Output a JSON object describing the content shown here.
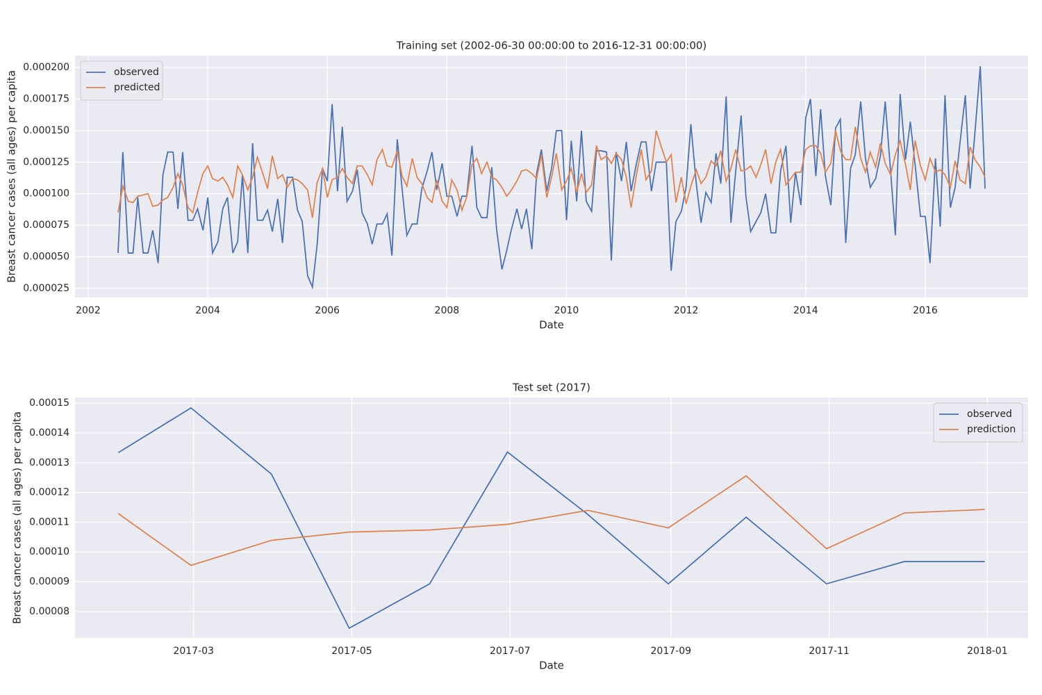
{
  "chart_data": [
    {
      "type": "line",
      "title": "Training set (2002-06-30 00:00:00 to 2016-12-31 00:00:00)",
      "x_label": "Date",
      "y_label": "Breast cancer cases (all ages) per capita",
      "legend": "upper left",
      "grid": true,
      "xlim": [
        2001.78,
        2017.72
      ],
      "xticks": [
        2002,
        2004,
        2006,
        2008,
        2010,
        2012,
        2014,
        2016
      ],
      "ylim": [
        1.78e-05,
        0.0002094
      ],
      "yticks": [
        {
          "value": 2.5e-05,
          "label": "0.000025"
        },
        {
          "value": 5e-05,
          "label": "0.000050"
        },
        {
          "value": 7.5e-05,
          "label": "0.000075"
        },
        {
          "value": 0.0001,
          "label": "0.000100"
        },
        {
          "value": 0.000125,
          "label": "0.000125"
        },
        {
          "value": 0.00015,
          "label": "0.000150"
        },
        {
          "value": 0.000175,
          "label": "0.000175"
        },
        {
          "value": 0.0002,
          "label": "0.000200"
        }
      ],
      "x": [
        2002.5,
        2002.58,
        2002.67,
        2002.75,
        2002.83,
        2002.92,
        2003.0,
        2003.08,
        2003.17,
        2003.25,
        2003.33,
        2003.42,
        2003.5,
        2003.58,
        2003.67,
        2003.75,
        2003.83,
        2003.92,
        2004.0,
        2004.08,
        2004.17,
        2004.25,
        2004.33,
        2004.42,
        2004.5,
        2004.58,
        2004.67,
        2004.75,
        2004.83,
        2004.92,
        2005.0,
        2005.08,
        2005.17,
        2005.25,
        2005.33,
        2005.42,
        2005.5,
        2005.58,
        2005.67,
        2005.75,
        2005.83,
        2005.92,
        2006.0,
        2006.08,
        2006.17,
        2006.25,
        2006.33,
        2006.42,
        2006.5,
        2006.58,
        2006.67,
        2006.75,
        2006.83,
        2006.92,
        2007.0,
        2007.08,
        2007.17,
        2007.25,
        2007.33,
        2007.42,
        2007.5,
        2007.58,
        2007.67,
        2007.75,
        2007.83,
        2007.92,
        2008.0,
        2008.08,
        2008.17,
        2008.25,
        2008.33,
        2008.42,
        2008.5,
        2008.58,
        2008.67,
        2008.75,
        2008.83,
        2008.92,
        2009.0,
        2009.08,
        2009.17,
        2009.25,
        2009.33,
        2009.42,
        2009.5,
        2009.58,
        2009.67,
        2009.75,
        2009.83,
        2009.92,
        2010.0,
        2010.08,
        2010.17,
        2010.25,
        2010.33,
        2010.42,
        2010.5,
        2010.58,
        2010.67,
        2010.75,
        2010.83,
        2010.92,
        2011.0,
        2011.08,
        2011.17,
        2011.25,
        2011.33,
        2011.42,
        2011.5,
        2011.58,
        2011.67,
        2011.75,
        2011.83,
        2011.92,
        2012.0,
        2012.08,
        2012.17,
        2012.25,
        2012.33,
        2012.42,
        2012.5,
        2012.58,
        2012.67,
        2012.75,
        2012.83,
        2012.92,
        2013.0,
        2013.08,
        2013.17,
        2013.25,
        2013.33,
        2013.42,
        2013.5,
        2013.58,
        2013.67,
        2013.75,
        2013.83,
        2013.92,
        2014.0,
        2014.08,
        2014.17,
        2014.25,
        2014.33,
        2014.42,
        2014.5,
        2014.58,
        2014.67,
        2014.75,
        2014.83,
        2014.92,
        2015.0,
        2015.08,
        2015.17,
        2015.25,
        2015.33,
        2015.42,
        2015.5,
        2015.58,
        2015.67,
        2015.75,
        2015.83,
        2015.92,
        2016.0,
        2016.08,
        2016.17,
        2016.25,
        2016.33,
        2016.42,
        2016.5,
        2016.58,
        2016.67,
        2016.75,
        2016.83,
        2016.92,
        2017.0
      ],
      "series": [
        {
          "name": "observed",
          "color": "#4c72b0",
          "values": [
            5.3e-05,
            0.000133,
            5.3e-05,
            5.3e-05,
            9.7e-05,
            5.3e-05,
            5.3e-05,
            7.1e-05,
            4.5e-05,
            0.000115,
            0.000133,
            0.000133,
            8.8e-05,
            0.000133,
            7.9e-05,
            7.9e-05,
            8.8e-05,
            7.1e-05,
            9.7e-05,
            5.3e-05,
            6.2e-05,
            8.8e-05,
            9.7e-05,
            5.3e-05,
            6.2e-05,
            0.000115,
            5.3e-05,
            0.00014,
            7.9e-05,
            7.9e-05,
            8.7e-05,
            7e-05,
            9.6e-05,
            6.1e-05,
            0.000113,
            0.000113,
            8.7e-05,
            7.8e-05,
            3.5e-05,
            2.6e-05,
            6e-05,
            0.00012,
            0.00011,
            0.000171,
            0.000102,
            0.000153,
            9.4e-05,
            0.000102,
            0.000119,
            8.5e-05,
            7.6e-05,
            6e-05,
            7.6e-05,
            7.6e-05,
            8.4e-05,
            5.1e-05,
            0.000143,
            0.000104,
            6.7e-05,
            7.6e-05,
            7.6e-05,
            0.000104,
            0.000118,
            0.000133,
            0.000103,
            0.000124,
            9.8e-05,
            9.8e-05,
            8.2e-05,
            9.8e-05,
            9.8e-05,
            0.000138,
            8.9e-05,
            8.1e-05,
            8.1e-05,
            0.000121,
            7.2e-05,
            4e-05,
            5.5e-05,
            7.2e-05,
            8.8e-05,
            7.2e-05,
            8.8e-05,
            5.6e-05,
            0.000116,
            0.000135,
            0.000102,
            0.00012,
            0.00015,
            0.00015,
            7.9e-05,
            0.000142,
            9.4e-05,
            0.00015,
            9.4e-05,
            8.6e-05,
            0.000134,
            0.000134,
            0.000133,
            4.7e-05,
            0.000133,
            0.00011,
            0.000141,
            0.000102,
            0.000124,
            0.000141,
            0.000141,
            0.000102,
            0.000125,
            0.000125,
            0.000125,
            3.9e-05,
            7.8e-05,
            8.6e-05,
            0.000105,
            0.000155,
            0.000108,
            7.7e-05,
            0.000101,
            9.3e-05,
            0.000132,
            0.000108,
            0.000177,
            7.7e-05,
            0.000118,
            0.000162,
            9.8e-05,
            7e-05,
            7.8e-05,
            8.5e-05,
            0.0001,
            6.9e-05,
            6.9e-05,
            0.000118,
            0.000138,
            7.7e-05,
            0.000117,
            9.1e-05,
            0.00016,
            0.000175,
            0.000114,
            0.000167,
            0.000114,
            9.1e-05,
            0.000152,
            0.000159,
            6.1e-05,
            0.00012,
            0.000131,
            0.000173,
            0.000128,
            0.000105,
            0.000112,
            0.00013,
            0.000173,
            0.000118,
            6.7e-05,
            0.000179,
            0.000127,
            0.000157,
            0.000123,
            8.2e-05,
            8.2e-05,
            4.5e-05,
            0.000128,
            7.4e-05,
            0.000178,
            8.9e-05,
            0.000105,
            0.00014,
            0.000178,
            0.000104,
            0.000148,
            0.000201,
            0.000104
          ]
        },
        {
          "name": "predicted",
          "color": "#dd8452",
          "values": [
            8.5e-05,
            0.000106,
            9.4e-05,
            9.3e-05,
            9.8e-05,
            9.9e-05,
            0.0001,
            9e-05,
            9.1e-05,
            9.5e-05,
            9.7e-05,
            0.000105,
            0.000116,
            0.000107,
            8.9e-05,
            8.5e-05,
            0.000101,
            0.000116,
            0.000122,
            0.000112,
            0.00011,
            0.000113,
            0.000107,
            9.7e-05,
            0.000122,
            0.000115,
            0.000103,
            0.000113,
            0.000129,
            0.000116,
            0.000104,
            0.00013,
            0.000112,
            0.000115,
            0.000105,
            0.000112,
            0.000111,
            0.000108,
            0.000103,
            8.1e-05,
            0.000109,
            0.00012,
            9.7e-05,
            0.000111,
            0.000113,
            0.00012,
            0.000113,
            0.000108,
            0.000122,
            0.000122,
            0.000115,
            0.000107,
            0.000127,
            0.000135,
            0.000122,
            0.000121,
            0.000134,
            0.000114,
            0.000106,
            0.000128,
            0.000113,
            0.000108,
            9.7e-05,
            9.3e-05,
            0.000111,
            9.4e-05,
            8.9e-05,
            0.000111,
            0.000103,
            8.7e-05,
            9.7e-05,
            0.000123,
            0.000128,
            0.000116,
            0.000125,
            0.000113,
            0.000111,
            0.000105,
            9.8e-05,
            0.000103,
            0.00011,
            0.000118,
            0.000119,
            0.000116,
            0.000112,
            0.000131,
            9.7e-05,
            0.000113,
            0.000132,
            0.000103,
            0.00011,
            0.00012,
            0.000101,
            0.000116,
            0.000101,
            0.000107,
            0.000138,
            0.000127,
            0.00013,
            0.000124,
            0.000132,
            0.000127,
            0.000113,
            8.9e-05,
            0.000115,
            0.000135,
            0.000111,
            0.000118,
            0.00015,
            0.000138,
            0.000125,
            0.000131,
            9.3e-05,
            0.000113,
            9.2e-05,
            0.000106,
            0.000119,
            0.000108,
            0.000113,
            0.000126,
            0.000122,
            0.000134,
            0.00011,
            0.00012,
            0.000135,
            0.000118,
            0.000119,
            0.000122,
            0.000113,
            0.000123,
            0.000135,
            0.000108,
            0.000125,
            0.000135,
            0.000107,
            0.000112,
            0.000117,
            0.000117,
            0.000135,
            0.000138,
            0.000138,
            0.000132,
            0.000117,
            0.000124,
            0.00015,
            0.000134,
            0.000127,
            0.000127,
            0.000153,
            0.000128,
            0.000117,
            0.000133,
            0.000121,
            0.00014,
            0.000124,
            0.000115,
            0.000131,
            0.000142,
            0.000123,
            0.000103,
            0.000142,
            0.000122,
            0.000111,
            0.000128,
            0.000117,
            0.000119,
            0.000115,
            0.000105,
            0.000126,
            0.000111,
            0.000108,
            0.000137,
            0.000127,
            0.000121,
            0.000113
          ]
        }
      ]
    },
    {
      "type": "line",
      "title": "Test set (2017)",
      "x_label": "Date",
      "y_label": "Breast cancer cases (all ages) per capita",
      "legend": "upper right",
      "grid": true,
      "x": [
        "2017-01",
        "2017-02",
        "2017-03",
        "2017-04",
        "2017-05",
        "2017-06",
        "2017-07",
        "2017-08",
        "2017-09",
        "2017-10",
        "2017-11",
        "2017-12"
      ],
      "xticks": [
        "2017-03",
        "2017-05",
        "2017-07",
        "2017-09",
        "2017-11",
        "2018-01"
      ],
      "ylim": [
        7.11e-05,
        0.0001519
      ],
      "yticks": [
        8e-05,
        9e-05,
        {
          "value": 0.0001,
          "label": "0.00010"
        },
        0.00011,
        0.00012,
        0.00013,
        0.00014,
        0.00015
      ],
      "series": [
        {
          "name": "observed",
          "color": "#4c72b0",
          "values": [
            0.0001334,
            0.0001484,
            0.0001262,
            7.44e-05,
            8.93e-05,
            0.0001336,
            0.0001126,
            8.93e-05,
            0.0001117,
            8.93e-05,
            9.68e-05,
            9.68e-05
          ]
        },
        {
          "name": "prediction",
          "color": "#dd8452",
          "values": [
            0.0001129,
            9.55e-05,
            0.0001039,
            0.0001067,
            0.0001074,
            0.0001093,
            0.000114,
            0.0001081,
            0.0001256,
            0.0001011,
            0.0001131,
            0.0001143
          ]
        }
      ]
    }
  ]
}
